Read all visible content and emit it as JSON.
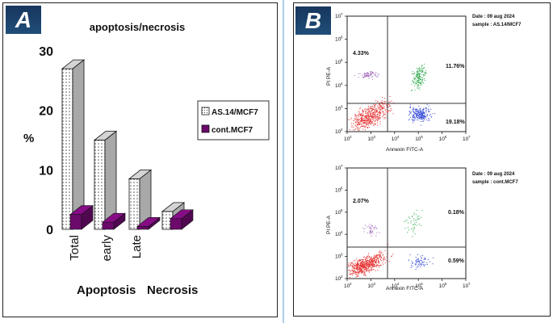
{
  "panel_a": {
    "label": "A",
    "chart_data": {
      "type": "bar",
      "title": "apoptosis/necrosis",
      "ylabel": "%",
      "xlabel_parts": [
        "Apoptosis",
        "Necrosis"
      ],
      "ylim": [
        0,
        30
      ],
      "yticks": [
        0,
        10,
        20,
        30
      ],
      "categories": [
        "Total",
        "early",
        "Late",
        ""
      ],
      "series": [
        {
          "name": "AS.14/MCF7",
          "values": [
            27,
            15,
            8.5,
            3
          ],
          "color": "#b0b0b0"
        },
        {
          "name": "cont.MCF7",
          "values": [
            2.5,
            1.2,
            0.5,
            1.8
          ],
          "color": "#6b0a6b"
        }
      ],
      "legend_position": "right"
    }
  },
  "panel_b": {
    "label": "B",
    "plots": [
      {
        "date": "Date : 09 aug 2024",
        "sample": "sample : AS.14/MCF7",
        "xlabel": "Annexin FITC-A",
        "ylabel": "PI PE-A",
        "quadrants": {
          "upper_left": "4.33%",
          "upper_right": "11.76%",
          "lower_right": "19.18%"
        },
        "ticks": [
          "2",
          "3",
          "4",
          "5",
          "6",
          "7"
        ]
      },
      {
        "date": "Date : 09 aug 2024",
        "sample": "sample :  cont.MCF7",
        "xlabel": "Annexin FITC-A",
        "ylabel": "PI PE-A",
        "quadrants": {
          "upper_left": "2.07%",
          "upper_right": "0.18%",
          "lower_right": "0.59%"
        },
        "ticks": [
          "2",
          "3",
          "4",
          "5",
          "6",
          "7"
        ]
      }
    ]
  }
}
